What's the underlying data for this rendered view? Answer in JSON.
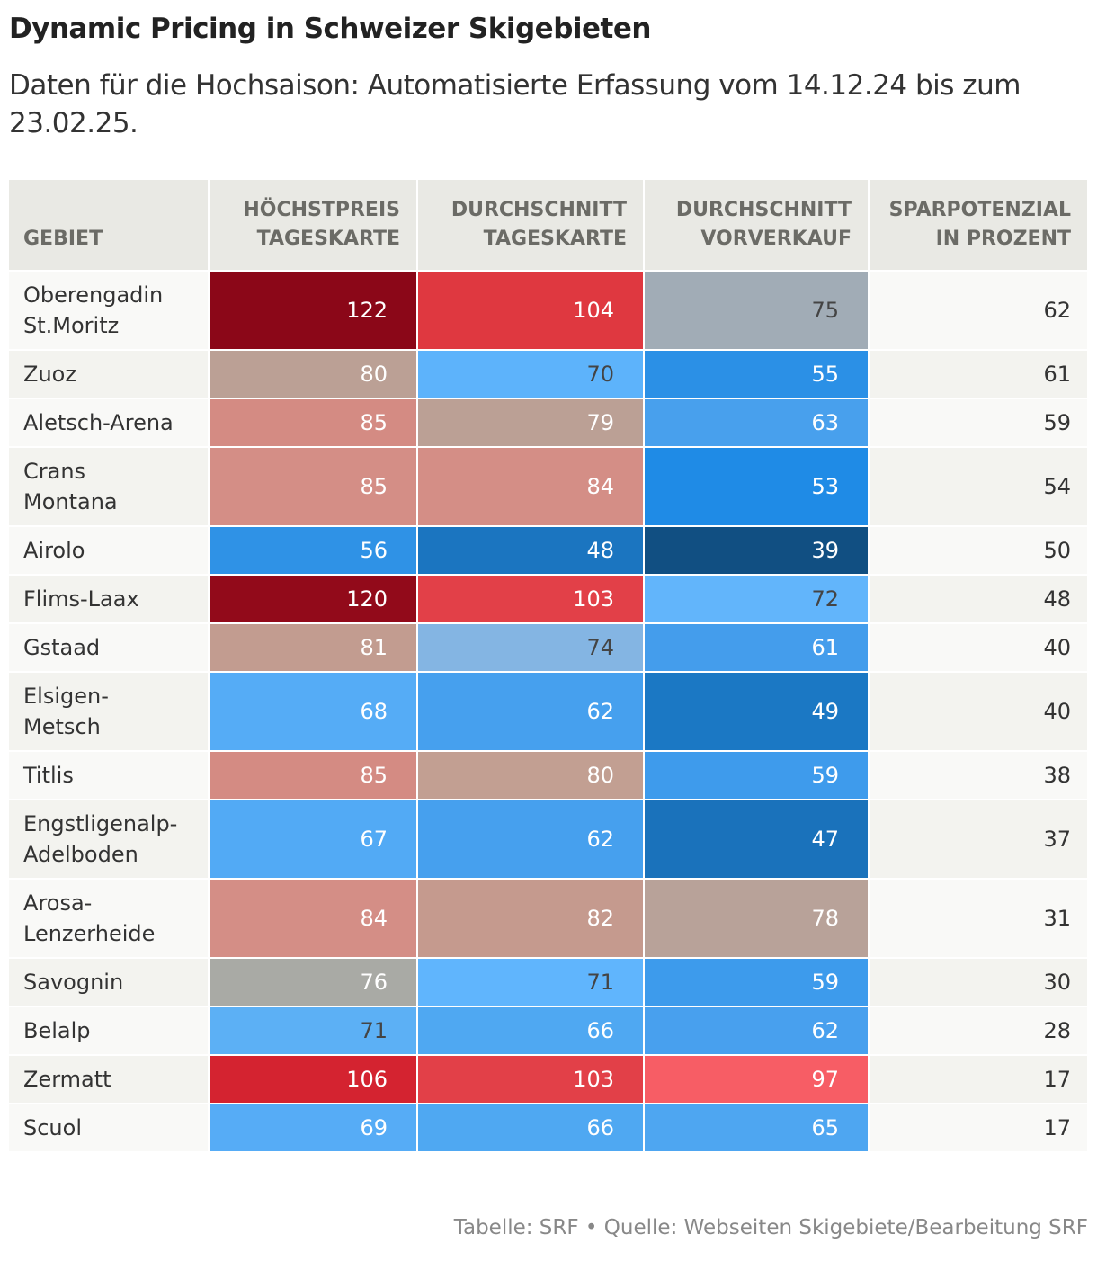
{
  "title": "Dynamic Pricing in Schweizer Skigebieten",
  "subtitle": "Daten für die Hochsaison: Automatisierte Erfassung vom 14.12.24 bis zum 23.02.25.",
  "footer": "Tabelle: SRF • Quelle: Webseiten Skigebiete/Bearbeitung SRF",
  "chart_data": {
    "type": "table",
    "columns": [
      "GEBIET",
      "HÖCHSTPREIS TAGESKARTE",
      "DURCHSCHNITT TAGESKARTE",
      "DURCHSCHNITT VORVERKAUF",
      "SPARPOTENZIAL IN PROZENT"
    ],
    "rows": [
      {
        "name": "Oberengadin St.Moritz",
        "values": [
          122,
          104,
          75,
          62
        ],
        "colors": [
          "#8b0718",
          "#df3840",
          "#a1acb6"
        ],
        "h": 88
      },
      {
        "name": "Zuoz",
        "values": [
          80,
          70,
          55,
          61
        ],
        "colors": [
          "#bba095",
          "#5db3fb",
          "#2b90e6"
        ],
        "h": 54
      },
      {
        "name": "Aletsch-Arena",
        "values": [
          85,
          79,
          63,
          59
        ],
        "colors": [
          "#d48b83",
          "#bba095",
          "#48a0ed"
        ],
        "h": 54
      },
      {
        "name": "Crans Montana",
        "values": [
          85,
          84,
          53,
          54
        ],
        "colors": [
          "#d48e86",
          "#d48e86",
          "#1f8be6"
        ],
        "h": 88
      },
      {
        "name": "Airolo",
        "values": [
          56,
          48,
          39,
          50
        ],
        "colors": [
          "#2f92e6",
          "#1b75c0",
          "#114f82"
        ],
        "h": 54
      },
      {
        "name": "Flims-Laax",
        "values": [
          120,
          103,
          72,
          48
        ],
        "colors": [
          "#920a1a",
          "#e24048",
          "#62b5fb"
        ],
        "h": 54
      },
      {
        "name": "Gstaad",
        "values": [
          81,
          74,
          61,
          40
        ],
        "colors": [
          "#c29c90",
          "#84b5e3",
          "#449dec"
        ],
        "h": 54
      },
      {
        "name": "Elsigen-Metsch",
        "values": [
          68,
          62,
          49,
          40
        ],
        "colors": [
          "#55acf6",
          "#46a0ee",
          "#1b78c4"
        ],
        "h": 88
      },
      {
        "name": "Titlis",
        "values": [
          85,
          80,
          59,
          38
        ],
        "colors": [
          "#d48b83",
          "#c29f92",
          "#3e9bec"
        ],
        "h": 54
      },
      {
        "name": "Engstligenalp-Adelboden",
        "values": [
          67,
          62,
          47,
          37
        ],
        "colors": [
          "#52aaf5",
          "#46a0ee",
          "#1a72bb"
        ],
        "h": 88
      },
      {
        "name": "Arosa-Lenzerheide",
        "values": [
          84,
          82,
          78,
          31
        ],
        "colors": [
          "#d48e86",
          "#c59a8e",
          "#b8a299"
        ],
        "h": 88
      },
      {
        "name": "Savognin",
        "values": [
          76,
          71,
          59,
          30
        ],
        "colors": [
          "#a9aaa5",
          "#60b5fd",
          "#3d9bec"
        ],
        "h": 54
      },
      {
        "name": "Belalp",
        "values": [
          71,
          66,
          62,
          28
        ],
        "colors": [
          "#5cb0f5",
          "#4fa8f2",
          "#48a0ee"
        ],
        "h": 54
      },
      {
        "name": "Zermatt",
        "values": [
          106,
          103,
          97,
          17
        ],
        "colors": [
          "#d42330",
          "#e24048",
          "#f75d65"
        ],
        "h": 54
      },
      {
        "name": "Scuol",
        "values": [
          69,
          66,
          65,
          17
        ],
        "colors": [
          "#56acf6",
          "#4fa8f2",
          "#4ea6f1"
        ],
        "h": 54
      }
    ],
    "dark_text_colors": [
      "#a1acb6",
      "#5db3fb",
      "#84b5e3",
      "#62b5fb",
      "#60b5fd",
      "#5cb0f5"
    ]
  }
}
